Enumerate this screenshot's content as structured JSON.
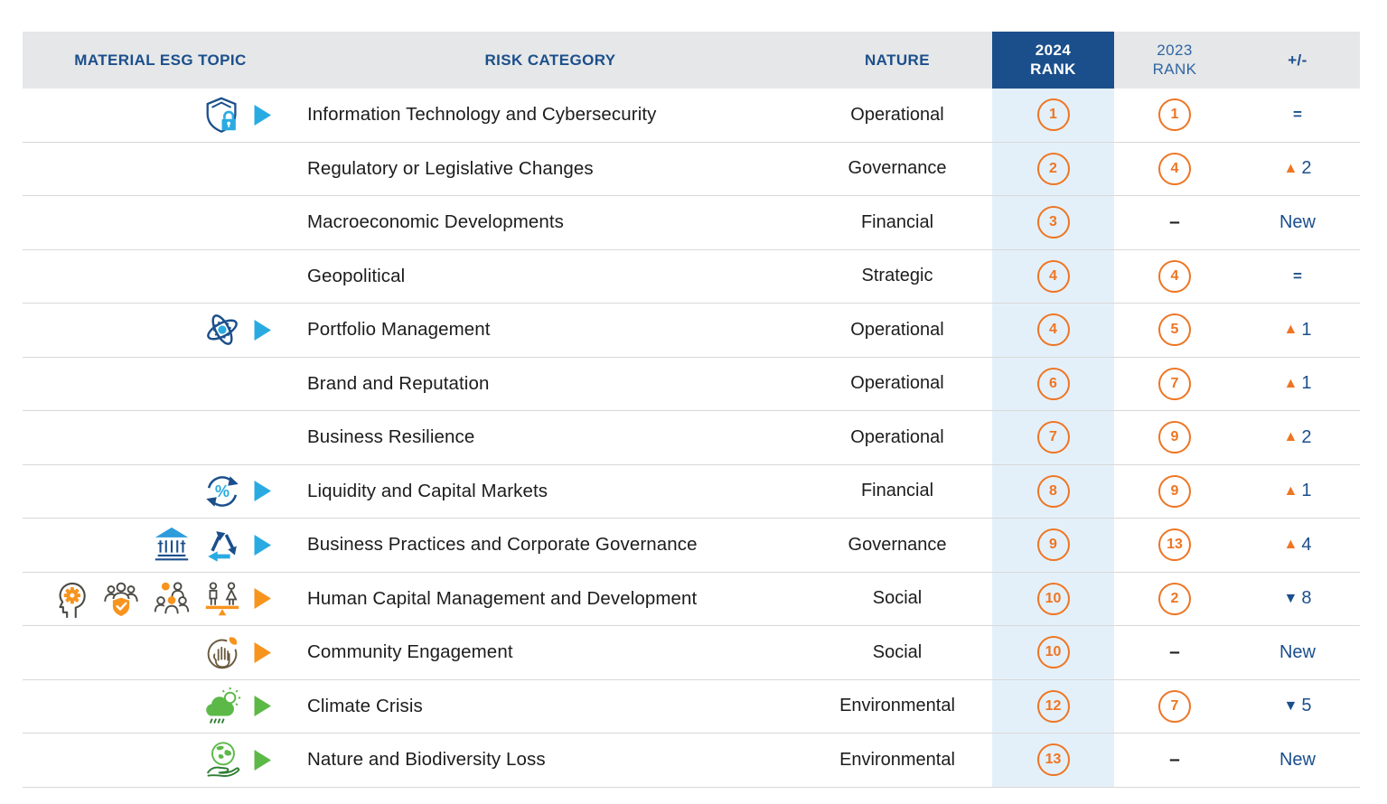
{
  "colors": {
    "navy": "#1B4F8C",
    "cyan": "#29ABE2",
    "blue_mid": "#2D9CDB",
    "orange": "#EE7523",
    "icon_orange": "#F7941E",
    "green": "#5CB947",
    "green_dark": "#2F7D32",
    "brown": "#6B5A3F",
    "outline_dark": "#4C4A44",
    "header_bg": "#E6E7E8",
    "rank_col_bg": "#E4F0F9",
    "divider": "#D8D8D8",
    "text": "#1C1C1C",
    "header_2023_text": "#2F66A3",
    "white": "#FFFFFF"
  },
  "table": {
    "no_rank_label": "–",
    "headers": {
      "topic": "MATERIAL ESG TOPIC",
      "risk_category": "RISK CATEGORY",
      "nature": "NATURE",
      "rank_2024_line1": "2024",
      "rank_2024_line2": "RANK",
      "rank_2023_line1": "2023",
      "rank_2023_line2": "RANK",
      "change": "+/-"
    },
    "rows": [
      {
        "topic": "Information Technology and Cybersecurity",
        "icons": [
          "shield-lock-icon"
        ],
        "arrow": "blue",
        "nature": "Operational",
        "rank_2024": "1",
        "rank_2023": "1",
        "change": {
          "type": "equal",
          "label": "="
        }
      },
      {
        "topic": "Regulatory or Legislative Changes",
        "icons": [],
        "arrow": null,
        "nature": "Governance",
        "rank_2024": "2",
        "rank_2023": "4",
        "change": {
          "type": "up",
          "value": "2"
        }
      },
      {
        "topic": "Macroeconomic Developments",
        "icons": [],
        "arrow": null,
        "nature": "Financial",
        "rank_2024": "3",
        "rank_2023": null,
        "change": {
          "type": "new",
          "label": "New"
        }
      },
      {
        "topic": "Geopolitical",
        "icons": [],
        "arrow": null,
        "nature": "Strategic",
        "rank_2024": "4",
        "rank_2023": "4",
        "change": {
          "type": "equal",
          "label": "="
        }
      },
      {
        "topic": "Portfolio Management",
        "icons": [
          "atom-icon"
        ],
        "arrow": "blue",
        "nature": "Operational",
        "rank_2024": "4",
        "rank_2023": "5",
        "change": {
          "type": "up",
          "value": "1"
        }
      },
      {
        "topic": "Brand and Reputation",
        "icons": [],
        "arrow": null,
        "nature": "Operational",
        "rank_2024": "6",
        "rank_2023": "7",
        "change": {
          "type": "up",
          "value": "1"
        }
      },
      {
        "topic": "Business Resilience",
        "icons": [],
        "arrow": null,
        "nature": "Operational",
        "rank_2024": "7",
        "rank_2023": "9",
        "change": {
          "type": "up",
          "value": "2"
        }
      },
      {
        "topic": "Liquidity and Capital Markets",
        "icons": [
          "percent-cycle-icon"
        ],
        "arrow": "blue",
        "nature": "Financial",
        "rank_2024": "8",
        "rank_2023": "9",
        "change": {
          "type": "up",
          "value": "1"
        }
      },
      {
        "topic": "Business Practices and Corporate Governance",
        "icons": [
          "bank-icon",
          "recycle-icon"
        ],
        "arrow": "blue",
        "nature": "Governance",
        "rank_2024": "9",
        "rank_2023": "13",
        "change": {
          "type": "up",
          "value": "4"
        }
      },
      {
        "topic": "Human Capital Management and Development",
        "icons": [
          "head-gear-icon",
          "team-shield-icon",
          "people-group-icon",
          "gender-balance-icon"
        ],
        "arrow": "orange",
        "nature": "Social",
        "rank_2024": "10",
        "rank_2023": "2",
        "change": {
          "type": "down",
          "value": "8"
        }
      },
      {
        "topic": "Community Engagement",
        "icons": [
          "hand-community-icon"
        ],
        "arrow": "orange",
        "nature": "Social",
        "rank_2024": "10",
        "rank_2023": null,
        "change": {
          "type": "new",
          "label": "New"
        }
      },
      {
        "topic": "Climate Crisis",
        "icons": [
          "climate-cloud-icon"
        ],
        "arrow": "green",
        "nature": "Environmental",
        "rank_2024": "12",
        "rank_2023": "7",
        "change": {
          "type": "down",
          "value": "5"
        }
      },
      {
        "topic": "Nature and Biodiversity Loss",
        "icons": [
          "globe-hand-icon"
        ],
        "arrow": "green",
        "nature": "Environmental",
        "rank_2024": "13",
        "rank_2023": null,
        "change": {
          "type": "new",
          "label": "New"
        }
      }
    ]
  }
}
